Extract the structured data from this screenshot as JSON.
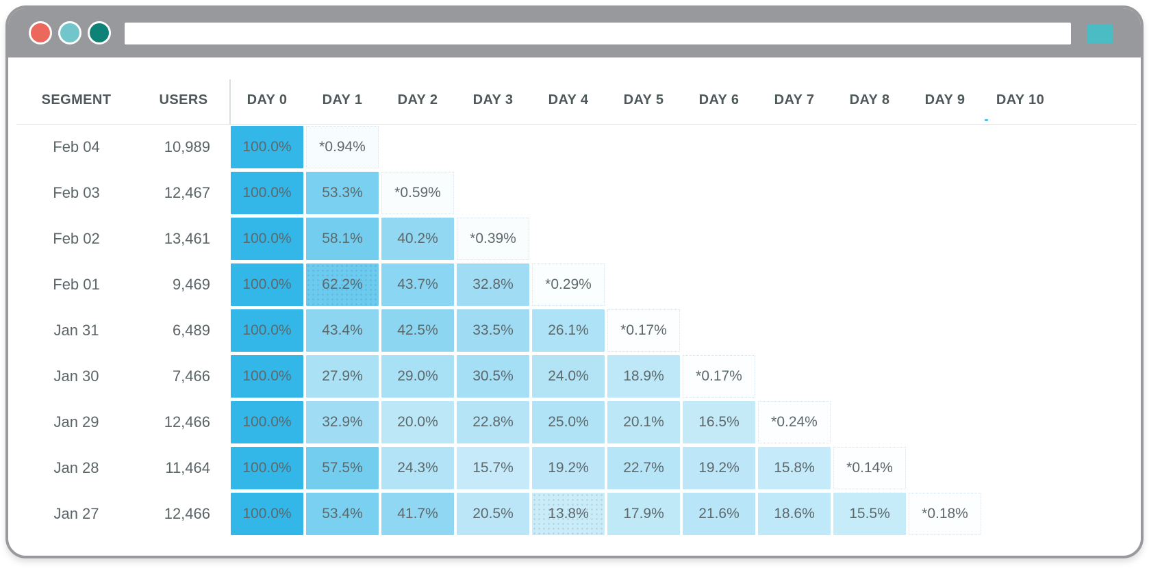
{
  "window": {
    "url_value": "",
    "traffic_lights": [
      {
        "name": "close-button",
        "color": "#ec685c"
      },
      {
        "name": "minimize-button",
        "color": "#72c5cb"
      },
      {
        "name": "fullscreen-button",
        "color": "#0f8277"
      }
    ],
    "titlebar_color": "#97999c",
    "action_button_color": "#4cbcc4"
  },
  "colors": {
    "cell_base": "#33b6e8",
    "header_text": "#4e585b",
    "body_text": "#5b6568",
    "cell_text": "#5d686b"
  },
  "table": {
    "headers": [
      "SEGMENT",
      "USERS",
      "DAY 0",
      "DAY 1",
      "DAY 2",
      "DAY 3",
      "DAY 4",
      "DAY 5",
      "DAY 6",
      "DAY 7",
      "DAY 8",
      "DAY 9",
      "DAY 10"
    ],
    "rows": [
      {
        "segment": "Feb 04",
        "users": "10,989",
        "values": [
          "100.0%",
          "*0.94%"
        ]
      },
      {
        "segment": "Feb 03",
        "users": "12,467",
        "values": [
          "100.0%",
          "53.3%",
          "*0.59%"
        ]
      },
      {
        "segment": "Feb 02",
        "users": "13,461",
        "values": [
          "100.0%",
          "58.1%",
          "40.2%",
          "*0.39%"
        ]
      },
      {
        "segment": "Feb 01",
        "users": "9,469",
        "values": [
          "100.0%",
          "62.2%",
          "43.7%",
          "32.8%",
          "*0.29%"
        ]
      },
      {
        "segment": "Jan 31",
        "users": "6,489",
        "values": [
          "100.0%",
          "43.4%",
          "42.5%",
          "33.5%",
          "26.1%",
          "*0.17%"
        ]
      },
      {
        "segment": "Jan 30",
        "users": "7,466",
        "values": [
          "100.0%",
          "27.9%",
          "29.0%",
          "30.5%",
          "24.0%",
          "18.9%",
          "*0.17%"
        ]
      },
      {
        "segment": "Jan 29",
        "users": "12,466",
        "values": [
          "100.0%",
          "32.9%",
          "20.0%",
          "22.8%",
          "25.0%",
          "20.1%",
          "16.5%",
          "*0.24%"
        ]
      },
      {
        "segment": "Jan 28",
        "users": "11,464",
        "values": [
          "100.0%",
          "57.5%",
          "24.3%",
          "15.7%",
          "19.2%",
          "22.7%",
          "19.2%",
          "15.8%",
          "*0.14%"
        ]
      },
      {
        "segment": "Jan 27",
        "users": "12,466",
        "values": [
          "100.0%",
          "53.4%",
          "41.7%",
          "20.5%",
          "13.8%",
          "17.9%",
          "21.6%",
          "18.6%",
          "15.5%",
          "*0.18%"
        ]
      }
    ],
    "textured_cells": [
      [
        3,
        1
      ],
      [
        8,
        4
      ]
    ]
  }
}
